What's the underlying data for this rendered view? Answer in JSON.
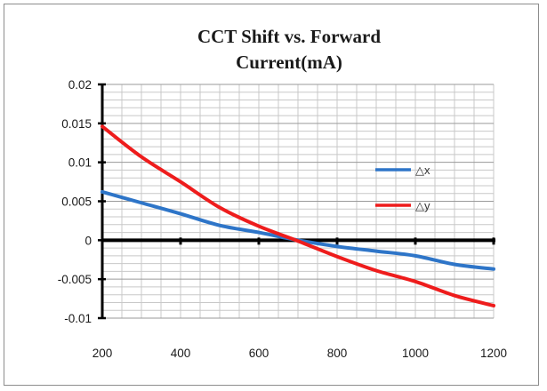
{
  "chart_data": {
    "type": "line",
    "title_lines": [
      "CCT Shift vs. Forward",
      "Current(mA)"
    ],
    "xlabel": "",
    "ylabel": "",
    "xlim": [
      200,
      1200
    ],
    "ylim": [
      -0.01,
      0.02
    ],
    "x_ticks": [
      200,
      400,
      600,
      800,
      1000,
      1200
    ],
    "x_tick_labels": [
      "200",
      "400",
      "600",
      "800",
      "1000",
      "1200"
    ],
    "y_ticks": [
      0.02,
      0.015,
      0.01,
      0.005,
      0,
      -0.005,
      -0.01
    ],
    "y_tick_labels": [
      "0.02",
      "0.015",
      "0.01",
      "0.005",
      "0",
      "-0.005",
      "-0.01"
    ],
    "grid": true,
    "legend_position": "right",
    "x": [
      200,
      300,
      400,
      500,
      600,
      700,
      800,
      900,
      1000,
      1100,
      1200
    ],
    "series": [
      {
        "name": "△x",
        "color": "#2e75c8",
        "values": [
          0.0062,
          0.0048,
          0.0034,
          0.0019,
          0.001,
          0.0,
          -0.0008,
          -0.0014,
          -0.002,
          -0.0031,
          -0.0037
        ]
      },
      {
        "name": "△y",
        "color": "#ee1c1c",
        "values": [
          0.0146,
          0.0107,
          0.0075,
          0.0042,
          0.0018,
          -0.0001,
          -0.0021,
          -0.0039,
          -0.0053,
          -0.0071,
          -0.0084
        ]
      }
    ]
  }
}
